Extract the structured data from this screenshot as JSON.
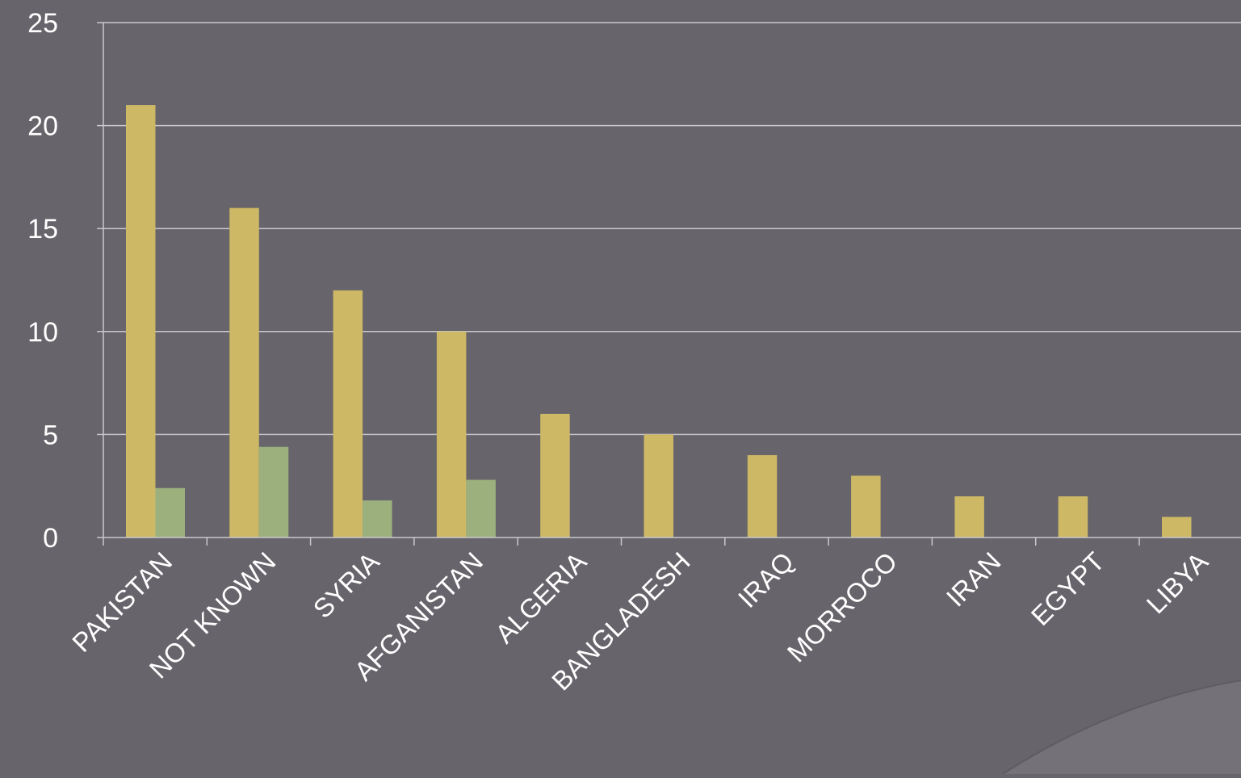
{
  "chart_data": {
    "type": "bar",
    "title": "",
    "xlabel": "",
    "ylabel": "",
    "ylim": [
      0,
      25
    ],
    "yticks": [
      0,
      5,
      10,
      15,
      20,
      25
    ],
    "grid": true,
    "categories": [
      "PAKISTAN",
      "NOT KNOWN",
      "SYRIA",
      "AFGANISTAN",
      "ALGERIA",
      "BANGLADESH",
      "IRAQ",
      "MORROCO",
      "IRAN",
      "EGYPT",
      "LIBYA"
    ],
    "series": [
      {
        "values": [
          21,
          16,
          12,
          10,
          6,
          5,
          4,
          3,
          2,
          2,
          1
        ],
        "color": "#cdb866"
      },
      {
        "values": [
          2.4,
          4.4,
          1.8,
          2.8,
          null,
          null,
          null,
          null,
          null,
          null,
          null
        ],
        "color": "#9cb07e"
      }
    ]
  },
  "colors": {
    "background": "#67646b",
    "axis": "#c9c9cc",
    "text": "#ffffff",
    "corner_fold": "#747178"
  }
}
